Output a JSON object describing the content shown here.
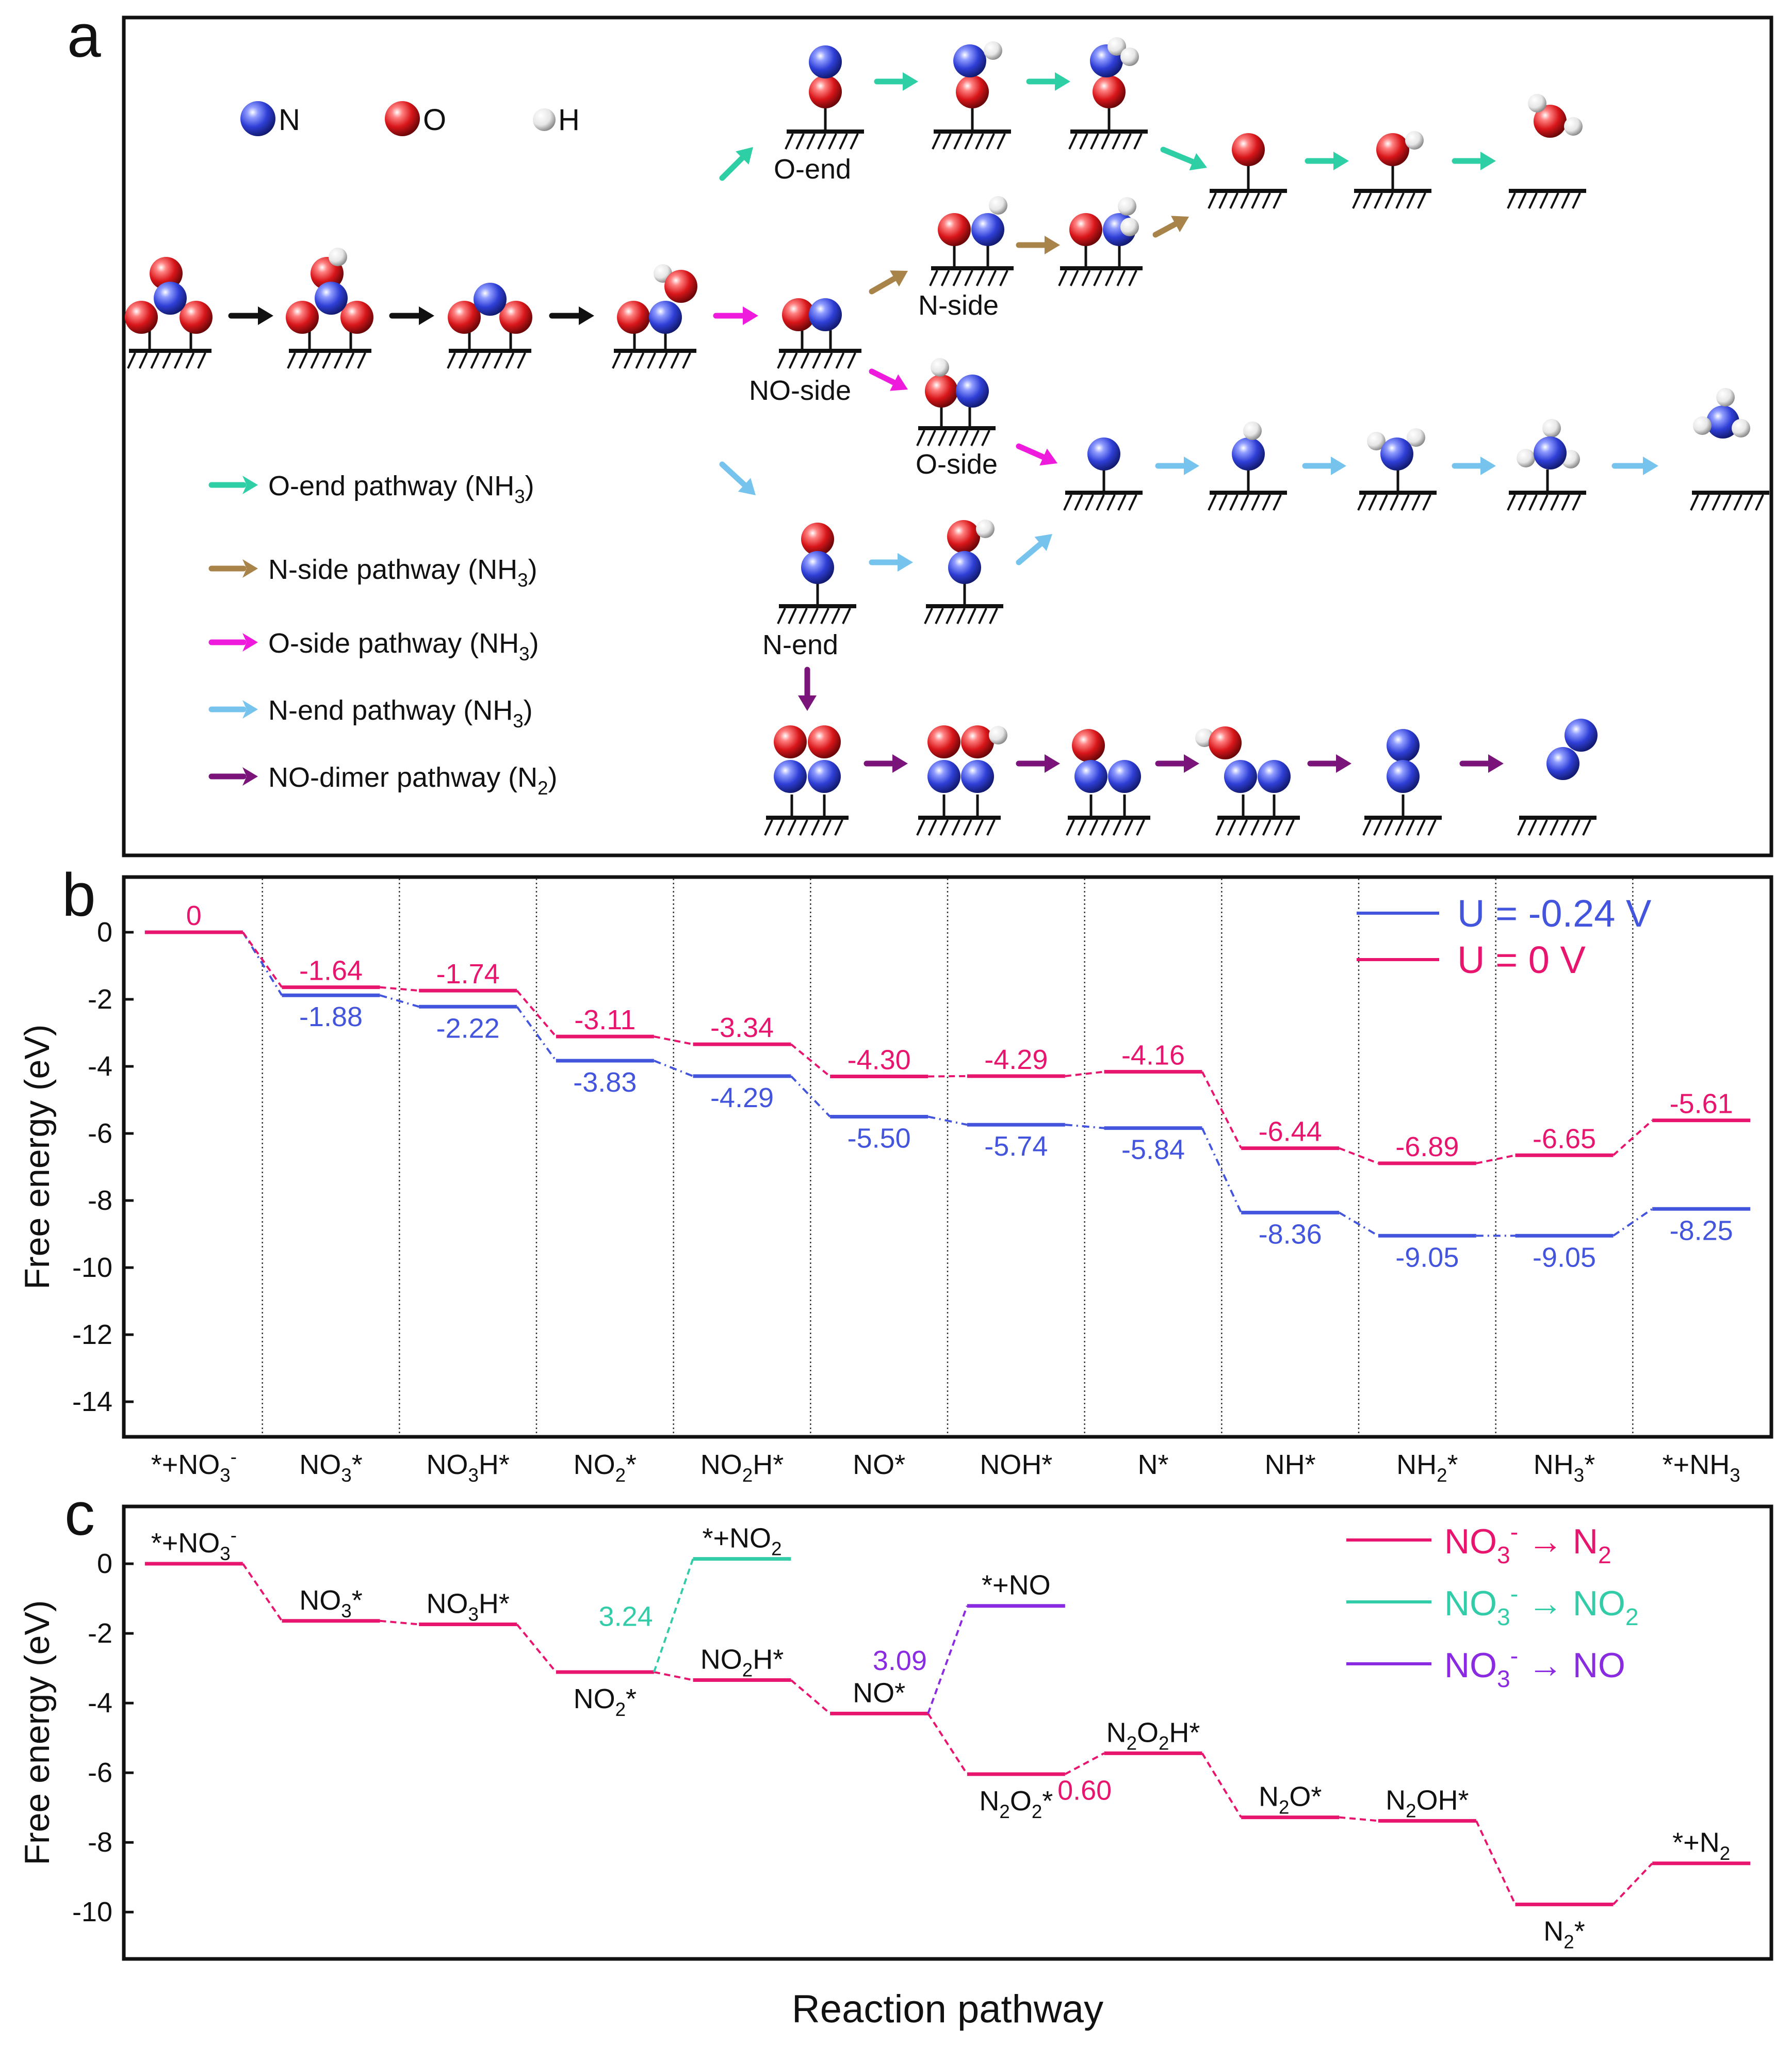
{
  "panel_labels": {
    "a": "a",
    "b": "b",
    "c": "c"
  },
  "colors": {
    "N": "#2f3fd6",
    "O": "#d8161a",
    "H": "#e8e8e8",
    "o_end": "#2fcfa6",
    "n_side": "#a8834a",
    "o_side": "#ee1bdc",
    "n_end": "#76c4ee",
    "dimer": "#7a147a",
    "black": "#111111",
    "blue": "#4455dd",
    "pink": "#e8156e",
    "green": "#33cca8",
    "purple": "#8a2be2"
  },
  "panel_a": {
    "atom_legend": {
      "N": "N",
      "O": "O",
      "H": "H"
    },
    "surface_labels": {
      "o_end": "O-end",
      "n_side": "N-side",
      "no_side": "NO-side",
      "o_side": "O-side",
      "n_end": "N-end"
    },
    "legend": [
      {
        "key": "o_end",
        "text": "O-end pathway (NH",
        "sub": "3",
        "tail": ")"
      },
      {
        "key": "n_side",
        "text": "N-side pathway (NH",
        "sub": "3",
        "tail": ")"
      },
      {
        "key": "o_side",
        "text": "O-side pathway (NH",
        "sub": "3",
        "tail": ")"
      },
      {
        "key": "n_end",
        "text": "N-end pathway (NH",
        "sub": "3",
        "tail": ")"
      },
      {
        "key": "dimer",
        "text": "NO-dimer pathway (N",
        "sub": "2",
        "tail": ")"
      }
    ]
  },
  "chart_data": [
    {
      "type": "line",
      "panel": "b",
      "ylabel": "Free energy (eV)",
      "ylim": [
        -15,
        1.6
      ],
      "yticks": [
        0,
        -2,
        -4,
        -6,
        -8,
        -10,
        -12,
        -14
      ],
      "categories": [
        [
          [
            "*+NO",
            ""
          ],
          [
            "3",
            "sub"
          ],
          [
            "-",
            "sup"
          ]
        ],
        [
          [
            "NO",
            ""
          ],
          [
            "3",
            "sub"
          ],
          [
            "*",
            ""
          ]
        ],
        [
          [
            "NO",
            ""
          ],
          [
            "3",
            "sub"
          ],
          [
            "H*",
            ""
          ]
        ],
        [
          [
            "NO",
            ""
          ],
          [
            "2",
            "sub"
          ],
          [
            "*",
            ""
          ]
        ],
        [
          [
            "NO",
            ""
          ],
          [
            "2",
            "sub"
          ],
          [
            "H*",
            ""
          ]
        ],
        [
          [
            "NO*",
            ""
          ]
        ],
        [
          [
            "NOH*",
            ""
          ]
        ],
        [
          [
            "N*",
            ""
          ]
        ],
        [
          [
            "NH*",
            ""
          ]
        ],
        [
          [
            "NH",
            ""
          ],
          [
            "2",
            "sub"
          ],
          [
            "*",
            ""
          ]
        ],
        [
          [
            "NH",
            ""
          ],
          [
            "3",
            "sub"
          ],
          [
            "*",
            ""
          ]
        ],
        [
          [
            "*+NH",
            ""
          ],
          [
            "3",
            "sub"
          ]
        ]
      ],
      "series": [
        {
          "name": "U = -0.24 V",
          "color": "#4455dd",
          "values": [
            0,
            -1.88,
            -2.22,
            -3.83,
            -4.29,
            -5.5,
            -5.74,
            -5.84,
            -8.36,
            -9.05,
            -9.05,
            -8.25
          ],
          "labels": [
            "",
            "-1.88",
            "-2.22",
            "-3.83",
            "-4.29",
            "-5.50",
            "-5.74",
            "-5.84",
            "-8.36",
            "-9.05",
            "-9.05",
            "-8.25"
          ]
        },
        {
          "name": "U = 0 V",
          "color": "#e8156e",
          "values": [
            0,
            -1.64,
            -1.74,
            -3.11,
            -3.34,
            -4.3,
            -4.29,
            -4.16,
            -6.44,
            -6.89,
            -6.65,
            -5.61
          ],
          "labels": [
            "0",
            "-1.64",
            "-1.74",
            "-3.11",
            "-3.34",
            "-4.30",
            "-4.29",
            "-4.16",
            "-6.44",
            "-6.89",
            "-6.65",
            "-5.61"
          ]
        }
      ],
      "legend_position": "top-right",
      "vertical_separators": true
    },
    {
      "type": "line",
      "panel": "c",
      "ylabel": "Free energy (eV)",
      "xlabel": "Reaction pathway",
      "ylim": [
        -11.3,
        1.6
      ],
      "yticks": [
        0,
        -2,
        -4,
        -6,
        -8,
        -10
      ],
      "series": [
        {
          "name": [
            [
              "NO",
              ""
            ],
            [
              "3",
              "sub"
            ],
            [
              "-",
              "sup"
            ],
            [
              " → N",
              ""
            ],
            [
              "2",
              "sub"
            ]
          ],
          "color": "#e8156e",
          "states": [
            {
              "x": 1,
              "y": 0,
              "label": [
                [
                  "*+NO",
                  ""
                ],
                [
                  "3",
                  "sub"
                ],
                [
                  "-",
                  "sup"
                ]
              ],
              "pos": "above"
            },
            {
              "x": 2,
              "y": -1.64,
              "label": [
                [
                  "NO",
                  ""
                ],
                [
                  "3",
                  "sub"
                ],
                [
                  "*",
                  ""
                ]
              ],
              "pos": "above"
            },
            {
              "x": 3,
              "y": -1.74,
              "label": [
                [
                  "NO",
                  ""
                ],
                [
                  "3",
                  "sub"
                ],
                [
                  "H*",
                  ""
                ]
              ],
              "pos": "above"
            },
            {
              "x": 4,
              "y": -3.11,
              "label": [
                [
                  "NO",
                  ""
                ],
                [
                  "2",
                  "sub"
                ],
                [
                  "*",
                  ""
                ]
              ],
              "pos": "below"
            },
            {
              "x": 5,
              "y": -3.34,
              "label": [
                [
                  "NO",
                  ""
                ],
                [
                  "2",
                  "sub"
                ],
                [
                  "H*",
                  ""
                ]
              ],
              "pos": "above"
            },
            {
              "x": 6,
              "y": -4.3,
              "label": [
                [
                  "NO*",
                  ""
                ]
              ],
              "pos": "above"
            },
            {
              "x": 7,
              "y": -6.04,
              "label": [
                [
                  "N",
                  ""
                ],
                [
                  "2",
                  "sub"
                ],
                [
                  "O",
                  ""
                ],
                [
                  "2",
                  "sub"
                ],
                [
                  "*",
                  ""
                ]
              ],
              "pos": "below"
            },
            {
              "x": 8,
              "y": -5.44,
              "label": [
                [
                  "N",
                  ""
                ],
                [
                  "2",
                  "sub"
                ],
                [
                  "O",
                  ""
                ],
                [
                  "2",
                  "sub"
                ],
                [
                  "H*",
                  ""
                ]
              ],
              "pos": "above"
            },
            {
              "x": 9,
              "y": -7.28,
              "label": [
                [
                  "N",
                  ""
                ],
                [
                  "2",
                  "sub"
                ],
                [
                  "O*",
                  ""
                ]
              ],
              "pos": "above"
            },
            {
              "x": 10,
              "y": -7.38,
              "label": [
                [
                  "N",
                  ""
                ],
                [
                  "2",
                  "sub"
                ],
                [
                  "OH*",
                  ""
                ]
              ],
              "pos": "above"
            },
            {
              "x": 11,
              "y": -9.78,
              "label": [
                [
                  "N",
                  ""
                ],
                [
                  "2",
                  "sub"
                ],
                [
                  "*",
                  ""
                ]
              ],
              "pos": "below"
            },
            {
              "x": 12,
              "y": -8.6,
              "label": [
                [
                  "*+N",
                  ""
                ],
                [
                  "2",
                  "sub"
                ]
              ],
              "pos": "above"
            }
          ]
        },
        {
          "name": [
            [
              "NO",
              ""
            ],
            [
              "3",
              "sub"
            ],
            [
              "-",
              "sup"
            ],
            [
              " → NO",
              ""
            ],
            [
              "2",
              "sub"
            ]
          ],
          "color": "#33cca8",
          "from": {
            "x": 4,
            "y": -3.11
          },
          "state": {
            "x": 5,
            "y": 0.14,
            "label": [
              [
                "*+NO",
                ""
              ],
              [
                "2",
                "sub"
              ]
            ]
          },
          "barrier": "3.24"
        },
        {
          "name": [
            [
              "NO",
              ""
            ],
            [
              "3",
              "sub"
            ],
            [
              "-",
              "sup"
            ],
            [
              " → NO",
              ""
            ]
          ],
          "color": "#8a2be2",
          "from": {
            "x": 6,
            "y": -4.3
          },
          "state": {
            "x": 7,
            "y": -1.21,
            "label": [
              [
                "*+NO",
                ""
              ]
            ]
          },
          "barrier": "3.09"
        }
      ],
      "annotations": [
        {
          "text": "0.60",
          "between": [
            7,
            8
          ]
        }
      ],
      "legend_position": "top-right"
    }
  ]
}
